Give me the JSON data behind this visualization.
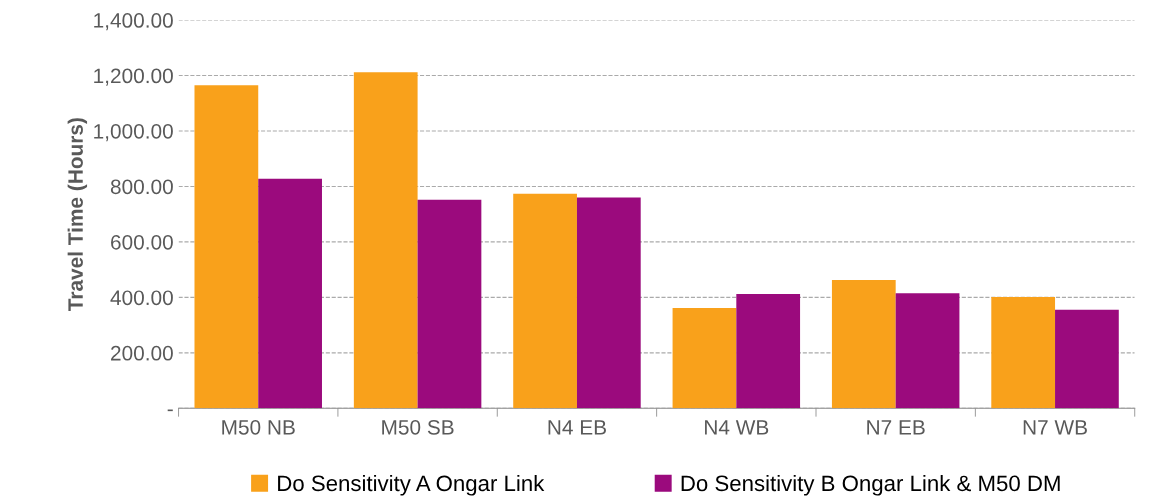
{
  "chart_data": {
    "type": "bar",
    "ylabel": "Travel Time (Hours)",
    "categories": [
      "M50 NB",
      "M50 SB",
      "N4 EB",
      "N4 WB",
      "N7 EB",
      "N7 WB"
    ],
    "series": [
      {
        "name": "Do Sensitivity A Ongar Link",
        "color": "#f9a11b",
        "values": [
          1165,
          1212,
          774,
          362,
          463,
          401
        ]
      },
      {
        "name": "Do Sensitivity B Ongar Link & M50 DM",
        "color": "#9b0a7d",
        "values": [
          828,
          752,
          760,
          412,
          415,
          355
        ]
      }
    ],
    "ylim": [
      0,
      1400
    ],
    "yticks": [
      {
        "value": 0,
        "label": "-"
      },
      {
        "value": 200,
        "label": "200.00"
      },
      {
        "value": 400,
        "label": "400.00"
      },
      {
        "value": 600,
        "label": "600.00"
      },
      {
        "value": 800,
        "label": "800.00"
      },
      {
        "value": 1000,
        "label": "1,000.00"
      },
      {
        "value": 1200,
        "label": "1,200.00"
      },
      {
        "value": 1400,
        "label": "1,400.00"
      }
    ],
    "grid": "y",
    "legend": "bottom"
  }
}
